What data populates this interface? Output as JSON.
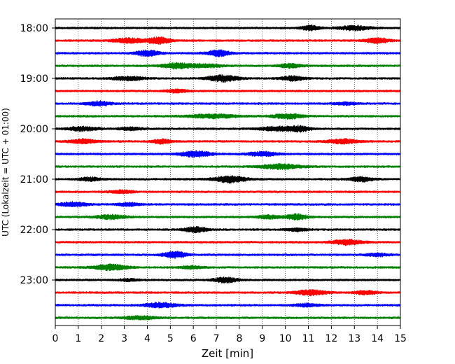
{
  "chart_data": {
    "type": "line",
    "title": "",
    "xlabel": "Zeit  [min]",
    "ylabel": "UTC (Lokalzeit = UTC + 01:00)",
    "xlim": [
      0,
      15
    ],
    "x_ticks": [
      "0",
      "1",
      "2",
      "3",
      "4",
      "5",
      "6",
      "7",
      "8",
      "9",
      "10",
      "11",
      "12",
      "13",
      "14",
      "15"
    ],
    "y_ticks": [
      "18:00",
      "19:00",
      "20:00",
      "21:00",
      "22:00",
      "23:00"
    ],
    "grid": "vertical dotted",
    "trace_colors": [
      "#000000",
      "#ff0000",
      "#0000ff",
      "#008000"
    ],
    "traces": [
      {
        "start": "18:00",
        "bursts": [
          [
            11.1,
            0.8,
            3.2
          ],
          [
            13.0,
            1.3,
            3.0
          ]
        ]
      },
      {
        "start": "18:15",
        "bursts": [
          [
            3.2,
            1.4,
            3.0
          ],
          [
            4.5,
            1.0,
            3.8
          ],
          [
            14.0,
            1.0,
            3.4
          ]
        ]
      },
      {
        "start": "18:30",
        "bursts": [
          [
            4.0,
            1.0,
            3.6
          ],
          [
            7.1,
            1.0,
            3.6
          ]
        ]
      },
      {
        "start": "18:45",
        "bursts": [
          [
            5.3,
            1.3,
            3.6
          ],
          [
            6.6,
            1.3,
            2.5
          ],
          [
            10.2,
            1.0,
            2.8
          ]
        ]
      },
      {
        "start": "19:00",
        "bursts": [
          [
            3.2,
            1.3,
            2.8
          ],
          [
            7.3,
            1.3,
            3.8
          ],
          [
            10.3,
            1.0,
            3.0
          ]
        ]
      },
      {
        "start": "19:15",
        "bursts": [
          [
            5.3,
            1.0,
            2.3
          ]
        ]
      },
      {
        "start": "19:30",
        "bursts": [
          [
            1.9,
            1.0,
            3.0
          ],
          [
            12.6,
            1.0,
            2.0
          ]
        ]
      },
      {
        "start": "19:45",
        "bursts": [
          [
            6.8,
            2.0,
            2.8
          ],
          [
            10.1,
            1.3,
            3.2
          ]
        ]
      },
      {
        "start": "20:00",
        "bursts": [
          [
            1.2,
            1.3,
            2.8
          ],
          [
            3.3,
            1.0,
            2.3
          ],
          [
            9.6,
            1.4,
            2.9
          ],
          [
            10.6,
            1.0,
            3.3
          ]
        ]
      },
      {
        "start": "20:15",
        "bursts": [
          [
            1.2,
            1.2,
            2.8
          ],
          [
            4.6,
            0.8,
            3.0
          ],
          [
            12.5,
            1.3,
            3.0
          ]
        ]
      },
      {
        "start": "20:30",
        "bursts": [
          [
            6.1,
            1.3,
            3.8
          ],
          [
            9.0,
            1.2,
            3.0
          ]
        ]
      },
      {
        "start": "20:45",
        "bursts": [
          [
            9.8,
            1.8,
            3.1
          ]
        ]
      },
      {
        "start": "21:00",
        "bursts": [
          [
            1.5,
            0.9,
            2.6
          ],
          [
            7.6,
            1.4,
            3.9
          ],
          [
            13.3,
            1.0,
            3.0
          ]
        ]
      },
      {
        "start": "21:15",
        "bursts": [
          [
            2.9,
            1.0,
            2.3
          ]
        ]
      },
      {
        "start": "21:30",
        "bursts": [
          [
            0.8,
            1.2,
            3.0
          ],
          [
            3.2,
            1.0,
            2.5
          ]
        ]
      },
      {
        "start": "21:45",
        "bursts": [
          [
            2.4,
            1.3,
            2.8
          ],
          [
            9.3,
            1.0,
            2.5
          ],
          [
            10.5,
            0.9,
            3.7
          ]
        ]
      },
      {
        "start": "22:00",
        "bursts": [
          [
            6.1,
            1.0,
            3.4
          ],
          [
            10.5,
            1.0,
            2.2
          ]
        ]
      },
      {
        "start": "22:15",
        "bursts": [
          [
            12.7,
            1.3,
            3.3
          ]
        ]
      },
      {
        "start": "22:30",
        "bursts": [
          [
            5.2,
            1.0,
            3.8
          ],
          [
            14.0,
            1.0,
            2.2
          ]
        ]
      },
      {
        "start": "22:45",
        "bursts": [
          [
            2.4,
            1.5,
            3.5
          ],
          [
            5.9,
            1.0,
            2.3
          ]
        ]
      },
      {
        "start": "23:00",
        "bursts": [
          [
            7.4,
            1.0,
            3.4
          ],
          [
            3.2,
            0.9,
            2.0
          ]
        ]
      },
      {
        "start": "23:15",
        "bursts": [
          [
            11.1,
            1.3,
            3.4
          ],
          [
            13.5,
            1.0,
            2.5
          ]
        ]
      },
      {
        "start": "23:30",
        "bursts": [
          [
            4.6,
            1.3,
            3.2
          ],
          [
            10.9,
            1.0,
            2.3
          ]
        ]
      },
      {
        "start": "23:45",
        "bursts": [
          [
            3.7,
            1.5,
            2.4
          ]
        ]
      }
    ]
  }
}
